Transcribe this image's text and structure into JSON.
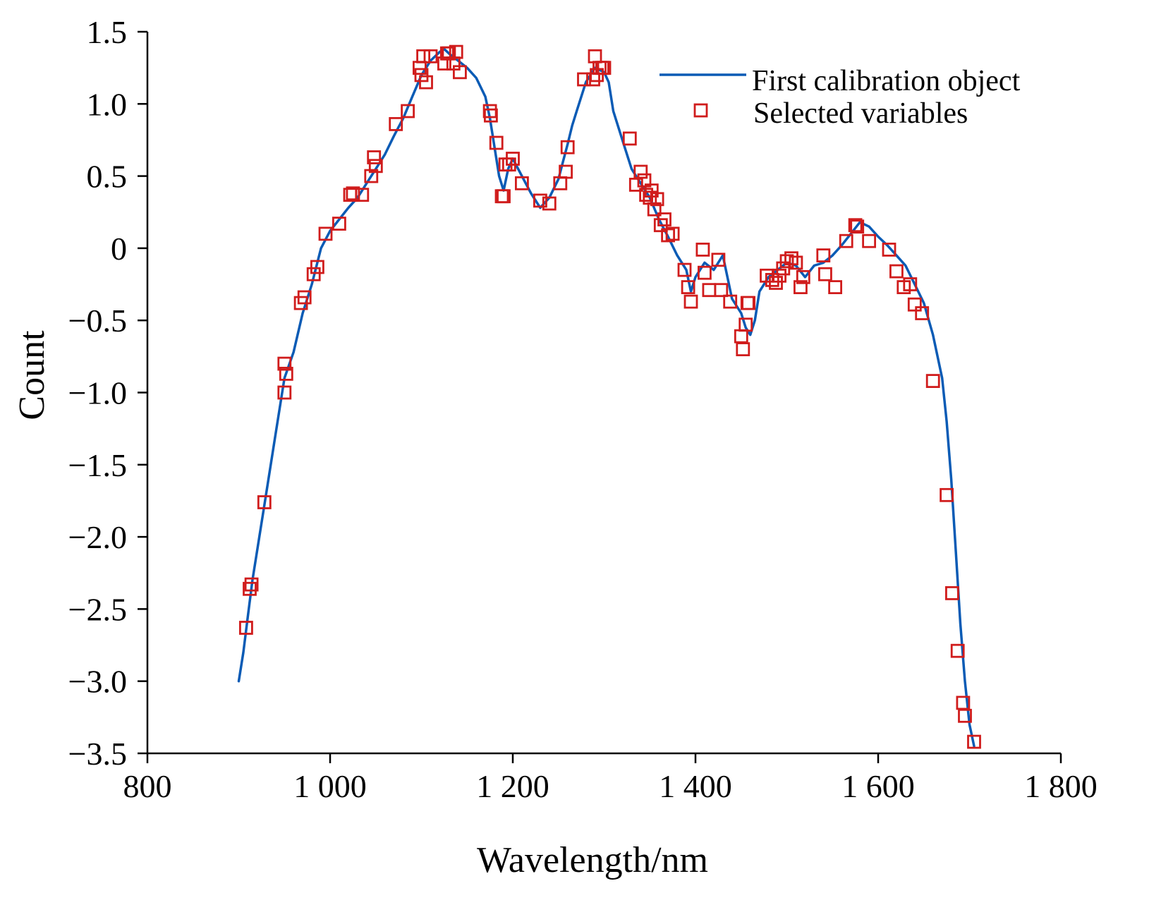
{
  "chart_data": {
    "type": "line",
    "title": "",
    "xlabel": "Wavelength/nm",
    "ylabel": "Count",
    "xlim": [
      800,
      1800
    ],
    "ylim": [
      -3.5,
      1.5
    ],
    "xticks": [
      800,
      1000,
      1200,
      1400,
      1600,
      1800
    ],
    "xtick_labels": [
      "800",
      "1 000",
      "1 200",
      "1 400",
      "1 600",
      "1 800"
    ],
    "yticks": [
      1.5,
      1.0,
      0.5,
      0,
      -0.5,
      -1.0,
      -1.5,
      -2.0,
      -2.5,
      -3.0,
      -3.5
    ],
    "ytick_labels": [
      "1.5",
      "1.0",
      "0.5",
      "0",
      "−0.5",
      "−1.0",
      "−1.5",
      "−2.0",
      "−2.5",
      "−3.0",
      "−3.5"
    ],
    "grid": false,
    "legend_position": "top-right",
    "series": [
      {
        "name": "First calibration object",
        "style": "line",
        "color": "#0a5bb5",
        "x": [
          900,
          905,
          910,
          915,
          920,
          930,
          940,
          950,
          960,
          970,
          980,
          990,
          1000,
          1010,
          1020,
          1030,
          1040,
          1050,
          1060,
          1070,
          1080,
          1090,
          1100,
          1110,
          1120,
          1125,
          1130,
          1140,
          1150,
          1160,
          1170,
          1175,
          1180,
          1185,
          1190,
          1195,
          1200,
          1210,
          1220,
          1230,
          1240,
          1250,
          1255,
          1260,
          1265,
          1270,
          1280,
          1290,
          1300,
          1305,
          1310,
          1320,
          1330,
          1340,
          1350,
          1360,
          1370,
          1380,
          1390,
          1395,
          1400,
          1410,
          1420,
          1430,
          1440,
          1450,
          1455,
          1460,
          1465,
          1470,
          1480,
          1490,
          1500,
          1510,
          1520,
          1530,
          1540,
          1550,
          1560,
          1570,
          1580,
          1590,
          1600,
          1610,
          1620,
          1630,
          1640,
          1650,
          1660,
          1670,
          1675,
          1680,
          1685,
          1690,
          1695,
          1700,
          1705
        ],
        "y": [
          -3.0,
          -2.8,
          -2.55,
          -2.3,
          -2.1,
          -1.7,
          -1.3,
          -0.9,
          -0.72,
          -0.45,
          -0.25,
          0.0,
          0.12,
          0.2,
          0.28,
          0.35,
          0.45,
          0.55,
          0.65,
          0.78,
          0.9,
          1.05,
          1.2,
          1.3,
          1.36,
          1.38,
          1.35,
          1.3,
          1.25,
          1.18,
          1.05,
          0.9,
          0.7,
          0.5,
          0.4,
          0.55,
          0.62,
          0.5,
          0.38,
          0.28,
          0.35,
          0.48,
          0.6,
          0.72,
          0.85,
          0.95,
          1.15,
          1.25,
          1.22,
          1.15,
          0.95,
          0.75,
          0.55,
          0.45,
          0.35,
          0.2,
          0.08,
          -0.05,
          -0.15,
          -0.3,
          -0.2,
          -0.1,
          -0.15,
          -0.05,
          -0.35,
          -0.45,
          -0.55,
          -0.6,
          -0.5,
          -0.3,
          -0.2,
          -0.15,
          -0.1,
          -0.12,
          -0.2,
          -0.12,
          -0.1,
          -0.05,
          0.02,
          0.1,
          0.18,
          0.15,
          0.08,
          0.02,
          -0.05,
          -0.12,
          -0.25,
          -0.38,
          -0.6,
          -0.9,
          -1.2,
          -1.6,
          -2.1,
          -2.6,
          -3.0,
          -3.3,
          -3.45
        ]
      },
      {
        "name": "Selected variables",
        "style": "markers",
        "color": "#d01c1c",
        "x": [
          908,
          912,
          914,
          928,
          950,
          950,
          952,
          968,
          972,
          982,
          986,
          995,
          1010,
          1022,
          1025,
          1035,
          1045,
          1048,
          1050,
          1072,
          1085,
          1098,
          1100,
          1102,
          1105,
          1110,
          1125,
          1128,
          1130,
          1135,
          1138,
          1142,
          1175,
          1176,
          1182,
          1188,
          1190,
          1192,
          1196,
          1200,
          1210,
          1230,
          1240,
          1252,
          1258,
          1260,
          1278,
          1288,
          1290,
          1292,
          1295,
          1298,
          1300,
          1328,
          1335,
          1340,
          1344,
          1346,
          1350,
          1352,
          1355,
          1358,
          1362,
          1366,
          1370,
          1375,
          1388,
          1392,
          1395,
          1408,
          1410,
          1415,
          1425,
          1428,
          1438,
          1450,
          1452,
          1455,
          1457,
          1458,
          1478,
          1484,
          1488,
          1492,
          1496,
          1500,
          1505,
          1510,
          1515,
          1518,
          1540,
          1542,
          1553,
          1565,
          1575,
          1577,
          1590,
          1612,
          1620,
          1628,
          1635,
          1640,
          1648,
          1660,
          1675,
          1681,
          1687,
          1693,
          1695,
          1705
        ],
        "y": [
          -2.63,
          -2.36,
          -2.33,
          -1.76,
          -1.0,
          -0.8,
          -0.87,
          -0.38,
          -0.34,
          -0.18,
          -0.13,
          0.1,
          0.17,
          0.37,
          0.38,
          0.37,
          0.5,
          0.63,
          0.57,
          0.86,
          0.95,
          1.25,
          1.2,
          1.33,
          1.15,
          1.33,
          1.28,
          1.35,
          1.35,
          1.28,
          1.36,
          1.22,
          0.95,
          0.92,
          0.73,
          0.36,
          0.36,
          0.58,
          0.58,
          0.62,
          0.45,
          0.33,
          0.31,
          0.45,
          0.53,
          0.7,
          1.17,
          1.17,
          1.33,
          1.2,
          1.25,
          1.25,
          1.25,
          0.76,
          0.44,
          0.53,
          0.47,
          0.37,
          0.35,
          0.4,
          0.27,
          0.34,
          0.16,
          0.2,
          0.09,
          0.1,
          -0.15,
          -0.27,
          -0.37,
          -0.01,
          -0.17,
          -0.29,
          -0.08,
          -0.29,
          -0.37,
          -0.61,
          -0.7,
          -0.53,
          -0.38,
          -0.38,
          -0.19,
          -0.22,
          -0.24,
          -0.19,
          -0.14,
          -0.09,
          -0.07,
          -0.1,
          -0.27,
          -0.2,
          -0.05,
          -0.18,
          -0.27,
          0.05,
          0.16,
          0.15,
          0.05,
          -0.01,
          -0.16,
          -0.27,
          -0.25,
          -0.39,
          -0.45,
          -0.92,
          -1.71,
          -2.39,
          -2.79,
          -3.15,
          -3.24,
          -3.42
        ]
      }
    ]
  }
}
